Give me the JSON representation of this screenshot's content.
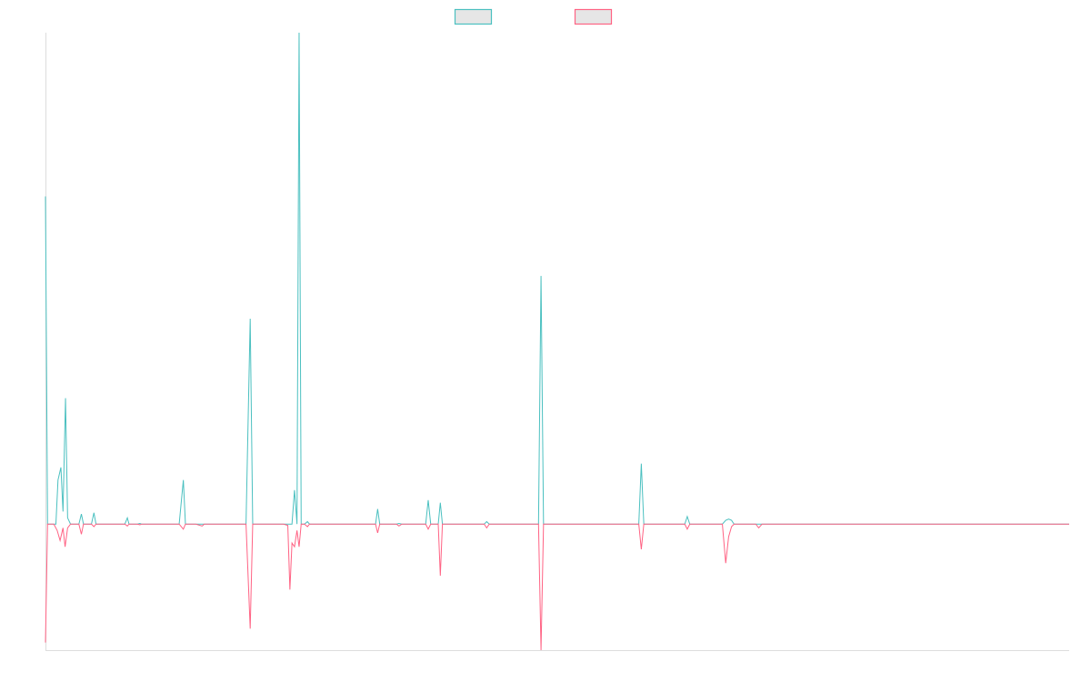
{
  "chart_data": {
    "type": "line",
    "title": "",
    "xlabel": "",
    "ylabel": "",
    "grid": false,
    "legend_position": "top-center",
    "x_range": [
      0,
      245
    ],
    "y_range": [
      -1.0,
      3.9
    ],
    "series": [
      {
        "color": "#4bc0c0",
        "legend_fill": "#e6e6e6",
        "points": [
          [
            0,
            2.6
          ],
          [
            0.5,
            0.0
          ],
          [
            1,
            0.0
          ],
          [
            2,
            0.0
          ],
          [
            2.5,
            0.0
          ],
          [
            3,
            0.35
          ],
          [
            3.7,
            0.45
          ],
          [
            4.2,
            0.1
          ],
          [
            4.8,
            1.0
          ],
          [
            5.3,
            0.05
          ],
          [
            6,
            0.0
          ],
          [
            7,
            0.0
          ],
          [
            8,
            0.0
          ],
          [
            8.6,
            0.08
          ],
          [
            9.1,
            0.0
          ],
          [
            10,
            0.0
          ],
          [
            11,
            0.0
          ],
          [
            11.6,
            0.09
          ],
          [
            12.1,
            0.0
          ],
          [
            13,
            0.0
          ],
          [
            19,
            0.0
          ],
          [
            19.6,
            0.05
          ],
          [
            20,
            0.0
          ],
          [
            22,
            0.0
          ],
          [
            22.6,
            0.005
          ],
          [
            23,
            0.0
          ],
          [
            32,
            0.0
          ],
          [
            33,
            0.35
          ],
          [
            33.5,
            0.0
          ],
          [
            36,
            0.0
          ],
          [
            37.5,
            0.0
          ],
          [
            38,
            0.0
          ],
          [
            48,
            0.0
          ],
          [
            49,
            1.63
          ],
          [
            49.6,
            0.0
          ],
          [
            57,
            0.0
          ],
          [
            58,
            0.0
          ],
          [
            58.5,
            0.0
          ],
          [
            59,
            0.0
          ],
          [
            59.6,
            0.27
          ],
          [
            60.2,
            0.0
          ],
          [
            60.7,
            3.9
          ],
          [
            61.2,
            0.0
          ],
          [
            62,
            0.0
          ],
          [
            62.7,
            0.02
          ],
          [
            63.2,
            0.0
          ],
          [
            79,
            0.0
          ],
          [
            79.5,
            0.12
          ],
          [
            80,
            0.0
          ],
          [
            84,
            0.0
          ],
          [
            84.6,
            0.005
          ],
          [
            85.3,
            0.0
          ],
          [
            90,
            0.0
          ],
          [
            91,
            0.0
          ],
          [
            91.6,
            0.19
          ],
          [
            92.2,
            0.0
          ],
          [
            94,
            0.0
          ],
          [
            94.5,
            0.17
          ],
          [
            95,
            0.0
          ],
          [
            105,
            0.0
          ],
          [
            105.6,
            0.02
          ],
          [
            106.2,
            0.0
          ],
          [
            118,
            0.0
          ],
          [
            118.6,
            1.97
          ],
          [
            119.2,
            0.0
          ],
          [
            142,
            0.0
          ],
          [
            142.6,
            0.48
          ],
          [
            143.2,
            0.0
          ],
          [
            153,
            0.0
          ],
          [
            153.6,
            0.06
          ],
          [
            154.2,
            0.0
          ],
          [
            162,
            0.0
          ],
          [
            162.8,
            0.03
          ],
          [
            163.5,
            0.04
          ],
          [
            164.2,
            0.03
          ],
          [
            164.8,
            0.0
          ],
          [
            170,
            0.0
          ],
          [
            170.7,
            0.0
          ],
          [
            171.5,
            0.0
          ],
          [
            245,
            0.0
          ]
        ]
      },
      {
        "color": "#ff6384",
        "legend_fill": "#e6e6e6",
        "points": [
          [
            0,
            -0.94
          ],
          [
            0.5,
            0.0
          ],
          [
            1,
            0.0
          ],
          [
            2,
            0.0
          ],
          [
            2.8,
            -0.05
          ],
          [
            3.5,
            -0.13
          ],
          [
            4.2,
            -0.03
          ],
          [
            4.7,
            -0.18
          ],
          [
            5.3,
            -0.03
          ],
          [
            6,
            0.0
          ],
          [
            7,
            0.0
          ],
          [
            8,
            0.0
          ],
          [
            8.6,
            -0.08
          ],
          [
            9.1,
            0.0
          ],
          [
            10,
            0.0
          ],
          [
            11,
            0.0
          ],
          [
            11.6,
            -0.02
          ],
          [
            12.1,
            0.0
          ],
          [
            13,
            0.0
          ],
          [
            19,
            0.0
          ],
          [
            19.6,
            -0.015
          ],
          [
            20,
            0.0
          ],
          [
            22,
            0.0
          ],
          [
            22.6,
            -0.005
          ],
          [
            23,
            0.0
          ],
          [
            32,
            0.0
          ],
          [
            33,
            -0.04
          ],
          [
            33.5,
            0.0
          ],
          [
            36,
            0.0
          ],
          [
            37.5,
            -0.015
          ],
          [
            38,
            0.0
          ],
          [
            48,
            0.0
          ],
          [
            49,
            -0.83
          ],
          [
            49.6,
            0.0
          ],
          [
            57,
            0.0
          ],
          [
            58,
            -0.01
          ],
          [
            58.5,
            -0.52
          ],
          [
            59,
            -0.15
          ],
          [
            59.6,
            -0.18
          ],
          [
            60.2,
            -0.05
          ],
          [
            60.7,
            -0.18
          ],
          [
            61.2,
            0.0
          ],
          [
            62,
            0.0
          ],
          [
            62.7,
            -0.02
          ],
          [
            63.2,
            0.0
          ],
          [
            79,
            0.0
          ],
          [
            79.5,
            -0.07
          ],
          [
            80,
            0.0
          ],
          [
            84,
            0.0
          ],
          [
            84.6,
            -0.015
          ],
          [
            85.3,
            0.0
          ],
          [
            90,
            0.0
          ],
          [
            91,
            0.0
          ],
          [
            91.6,
            -0.04
          ],
          [
            92.2,
            0.0
          ],
          [
            94,
            0.0
          ],
          [
            94.5,
            -0.41
          ],
          [
            95,
            0.0
          ],
          [
            105,
            0.0
          ],
          [
            105.6,
            -0.03
          ],
          [
            106.2,
            0.0
          ],
          [
            118,
            0.0
          ],
          [
            118.6,
            -1.0
          ],
          [
            119.2,
            0.0
          ],
          [
            142,
            0.0
          ],
          [
            142.6,
            -0.2
          ],
          [
            143.2,
            0.0
          ],
          [
            153,
            0.0
          ],
          [
            153.6,
            -0.04
          ],
          [
            154.2,
            0.0
          ],
          [
            162,
            0.0
          ],
          [
            162.8,
            -0.31
          ],
          [
            163.5,
            -0.1
          ],
          [
            164.2,
            -0.02
          ],
          [
            164.8,
            0.0
          ],
          [
            170,
            0.0
          ],
          [
            170.7,
            -0.03
          ],
          [
            171.5,
            0.0
          ],
          [
            245,
            0.0
          ]
        ]
      }
    ]
  }
}
